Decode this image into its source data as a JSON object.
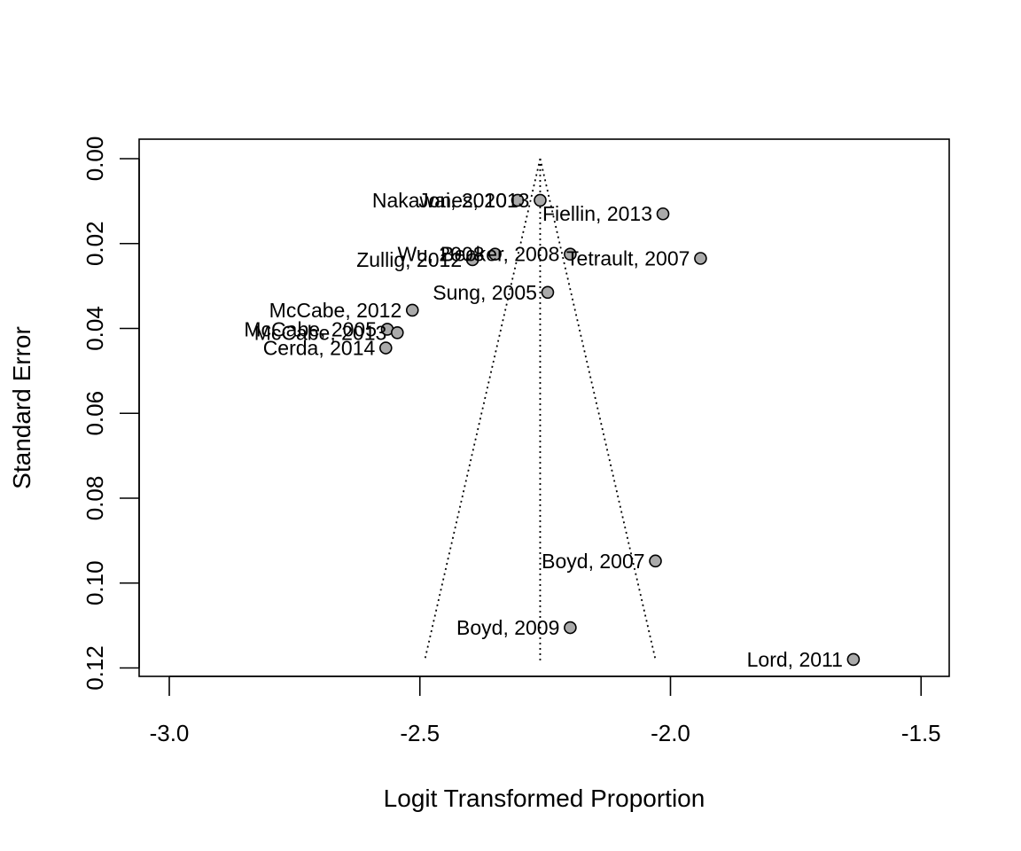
{
  "chart_data": {
    "type": "scatter",
    "title": "",
    "xlabel": "Logit Transformed Proportion",
    "ylabel": "Standard Error",
    "xlim": [
      -3.06,
      -1.44
    ],
    "ylim": [
      0.12,
      0.0
    ],
    "y_reversed": true,
    "x_ticks": [
      -3.0,
      -2.5,
      -2.0,
      -1.5
    ],
    "x_tick_labels": [
      "-3.0",
      "-2.5",
      "-2.0",
      "-1.5"
    ],
    "y_ticks": [
      0.0,
      0.02,
      0.04,
      0.06,
      0.08,
      0.1,
      0.12
    ],
    "y_tick_labels": [
      "0.00",
      "0.02",
      "0.04",
      "0.06",
      "0.08",
      "0.10",
      "0.12"
    ],
    "grid": false,
    "legend": "none",
    "funnel": {
      "center": -2.26,
      "se_max": 0.118,
      "left_bottom": -2.49,
      "right_bottom": -2.03,
      "line_style": "dotted"
    },
    "marker_color": "#aaaaaa",
    "points": [
      {
        "label": "Nakawai, 2010",
        "x": -2.305,
        "y": 0.0098
      },
      {
        "label": "Jones, 2013",
        "x": -2.26,
        "y": 0.0098
      },
      {
        "label": "Fiellin, 2013",
        "x": -2.015,
        "y": 0.013
      },
      {
        "label": "Wu, 2008",
        "x": -2.35,
        "y": 0.0225
      },
      {
        "label": "Becker, 2008",
        "x": -2.2,
        "y": 0.0225
      },
      {
        "label": "Zullig, 2012",
        "x": -2.395,
        "y": 0.0238
      },
      {
        "label": "Tetrault, 2007",
        "x": -1.94,
        "y": 0.0235
      },
      {
        "label": "Sung, 2005",
        "x": -2.245,
        "y": 0.0315
      },
      {
        "label": "McCabe, 2012",
        "x": -2.515,
        "y": 0.0357
      },
      {
        "label": "McCabe, 2005",
        "x": -2.565,
        "y": 0.0402
      },
      {
        "label": "McCabe, 2013",
        "x": -2.545,
        "y": 0.041
      },
      {
        "label": "Cerda, 2014",
        "x": -2.568,
        "y": 0.0446
      },
      {
        "label": "Boyd, 2007",
        "x": -2.03,
        "y": 0.0948
      },
      {
        "label": "Boyd, 2009",
        "x": -2.2,
        "y": 0.1105
      },
      {
        "label": "Lord, 2011",
        "x": -1.635,
        "y": 0.118
      }
    ]
  }
}
